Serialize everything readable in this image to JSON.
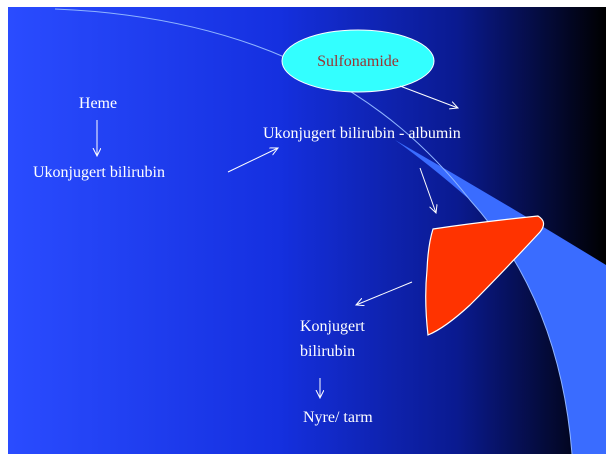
{
  "nodes": [
    {
      "label": "Sulfonamide"
    },
    {
      "label": "Heme"
    },
    {
      "label": "Ukonjugert bilirubin"
    },
    {
      "label": "Ukonjugert bilirubin - albumin"
    },
    {
      "lines": [
        "Konjugert",
        "bilirubin"
      ]
    },
    {
      "label": "Nyre/ tarm"
    }
  ]
}
